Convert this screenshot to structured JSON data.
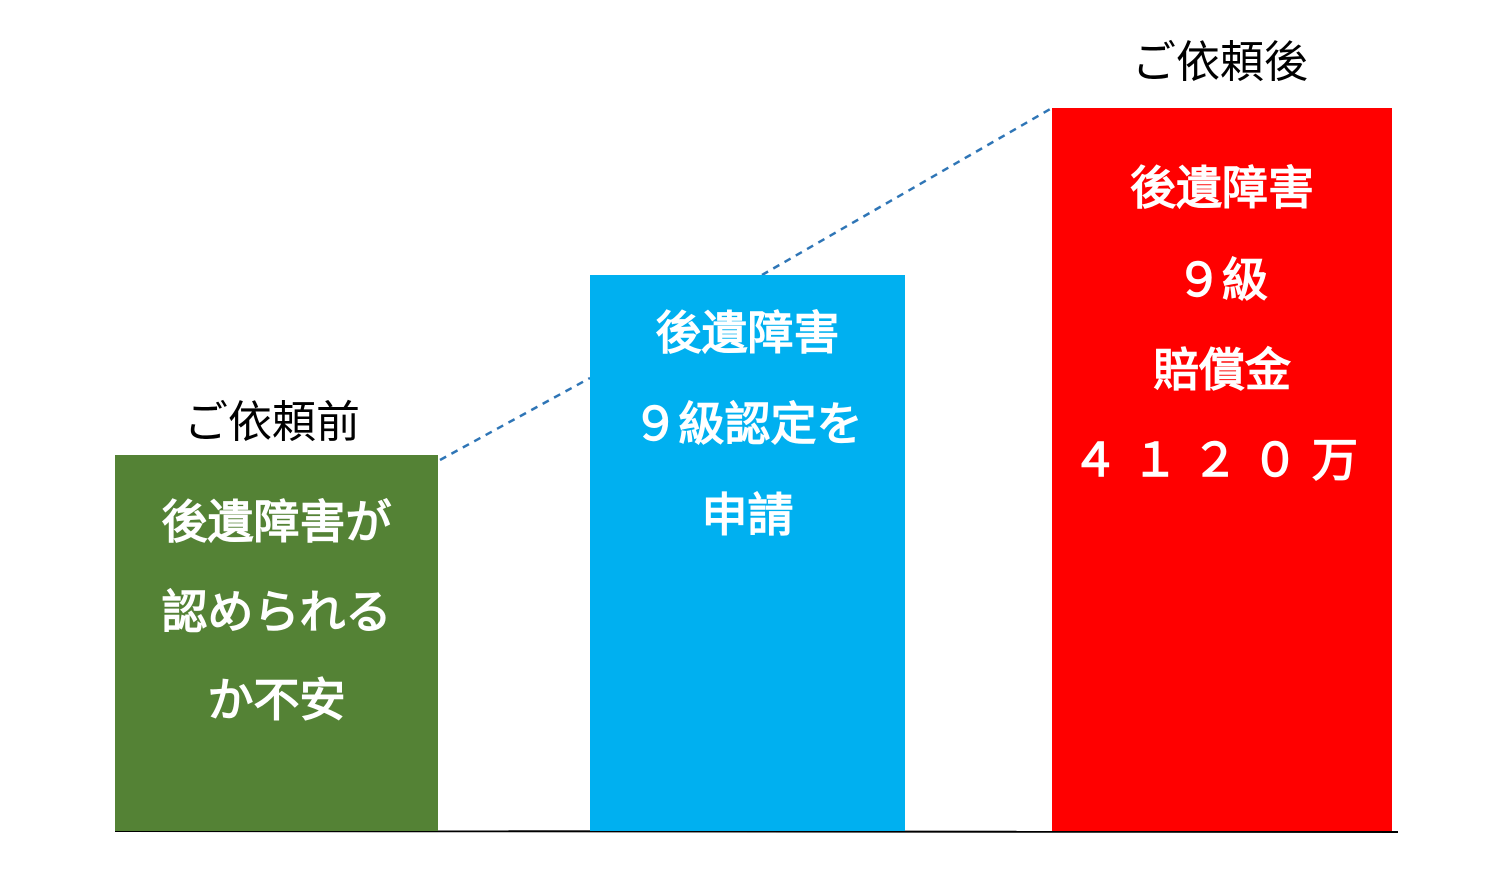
{
  "labels": {
    "before": "ご依頼前",
    "after": "ご依頼後"
  },
  "bars": [
    {
      "lines": [
        "後遺障害が",
        "認められる",
        "か不安"
      ]
    },
    {
      "lines": [
        "後遺障害",
        "９級認定を",
        "申請"
      ]
    },
    {
      "lines": [
        "後遺障害",
        "９級",
        "賠償金",
        "４１２０万"
      ]
    }
  ]
}
